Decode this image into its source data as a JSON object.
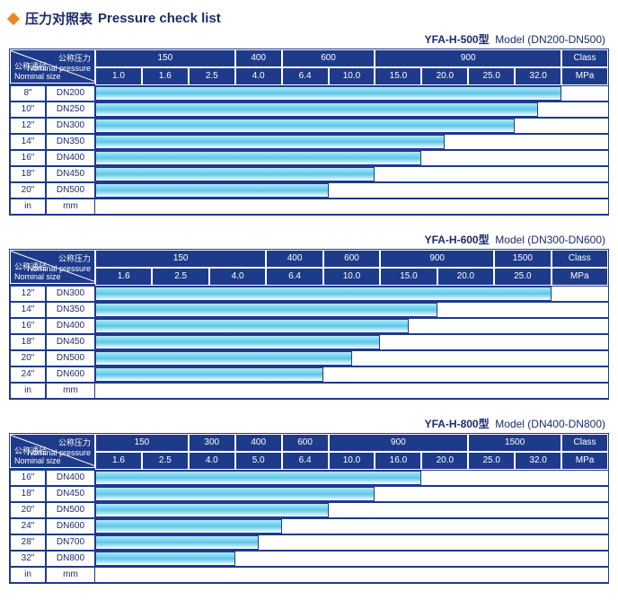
{
  "title": {
    "cn": "压力对照表",
    "en": "Pressure check list"
  },
  "colors": {
    "header_bg": "#1e3a8a",
    "header_text": "#ffffff",
    "border": "#1e3a8a",
    "text": "#1e2a6b",
    "diamond": "#e68a1e",
    "bar_gradient_top": "#b3e9f7",
    "bar_gradient_mid": "#5ac8e8",
    "bar_gradient_bot": "#ffffff"
  },
  "diag_labels": {
    "top_cn": "公称压力",
    "top_en": "Nominal pressure",
    "bot_cn": "公称通径",
    "bot_en": "Nominal size"
  },
  "units_row": {
    "in": "in",
    "mm": "mm"
  },
  "sections": [
    {
      "model_cn": "YFA-H-500型",
      "model_en": "Model (DN200-DN500)",
      "label_col_widths": [
        40,
        55
      ],
      "data_cols": 11,
      "class_row": [
        "150",
        "",
        "",
        "400",
        "600",
        "",
        "900",
        "",
        "",
        "",
        "Class"
      ],
      "mpa_row": [
        "1.0",
        "1.6",
        "2.5",
        "4.0",
        "6.4",
        "10.0",
        "15.0",
        "20.0",
        "25.0",
        "32.0",
        "MPa"
      ],
      "rows": [
        {
          "in": "8\"",
          "mm": "DN200",
          "bar_span": 10
        },
        {
          "in": "10\"",
          "mm": "DN250",
          "bar_span": 9.5
        },
        {
          "in": "12\"",
          "mm": "DN300",
          "bar_span": 9
        },
        {
          "in": "14\"",
          "mm": "DN350",
          "bar_span": 7.5
        },
        {
          "in": "16\"",
          "mm": "DN400",
          "bar_span": 7
        },
        {
          "in": "18\"",
          "mm": "DN450",
          "bar_span": 6
        },
        {
          "in": "20\"",
          "mm": "DN500",
          "bar_span": 5
        }
      ]
    },
    {
      "model_cn": "YFA-H-600型",
      "model_en": "Model (DN300-DN600)",
      "label_col_widths": [
        40,
        55
      ],
      "data_cols": 9,
      "class_row": [
        "150",
        "",
        "",
        "400",
        "600",
        "900",
        "",
        "1500",
        "Class"
      ],
      "mpa_row": [
        "1.6",
        "2.5",
        "4.0",
        "6.4",
        "10.0",
        "15.0",
        "20.0",
        "25.0",
        "MPa"
      ],
      "rows": [
        {
          "in": "12\"",
          "mm": "DN300",
          "bar_span": 8
        },
        {
          "in": "14\"",
          "mm": "DN350",
          "bar_span": 6
        },
        {
          "in": "16\"",
          "mm": "DN400",
          "bar_span": 5.5
        },
        {
          "in": "18\"",
          "mm": "DN450",
          "bar_span": 5
        },
        {
          "in": "20\"",
          "mm": "DN500",
          "bar_span": 4.5
        },
        {
          "in": "24\"",
          "mm": "DN600",
          "bar_span": 4
        }
      ]
    },
    {
      "model_cn": "YFA-H-800型",
      "model_en": "Model (DN400-DN800)",
      "label_col_widths": [
        40,
        55
      ],
      "data_cols": 11,
      "class_row": [
        "150",
        "",
        "300",
        "400",
        "600",
        "900",
        "",
        "",
        "1500",
        "",
        "Class"
      ],
      "mpa_row": [
        "1.6",
        "2.5",
        "4.0",
        "5.0",
        "6.4",
        "10.0",
        "16.0",
        "20.0",
        "25.0",
        "32.0",
        "MPa"
      ],
      "rows": [
        {
          "in": "16\"",
          "mm": "DN400",
          "bar_span": 7
        },
        {
          "in": "18\"",
          "mm": "DN450",
          "bar_span": 6
        },
        {
          "in": "20\"",
          "mm": "DN500",
          "bar_span": 5
        },
        {
          "in": "24\"",
          "mm": "DN600",
          "bar_span": 4
        },
        {
          "in": "28\"",
          "mm": "DN700",
          "bar_span": 3.5
        },
        {
          "in": "32\"",
          "mm": "DN800",
          "bar_span": 3
        }
      ]
    }
  ]
}
